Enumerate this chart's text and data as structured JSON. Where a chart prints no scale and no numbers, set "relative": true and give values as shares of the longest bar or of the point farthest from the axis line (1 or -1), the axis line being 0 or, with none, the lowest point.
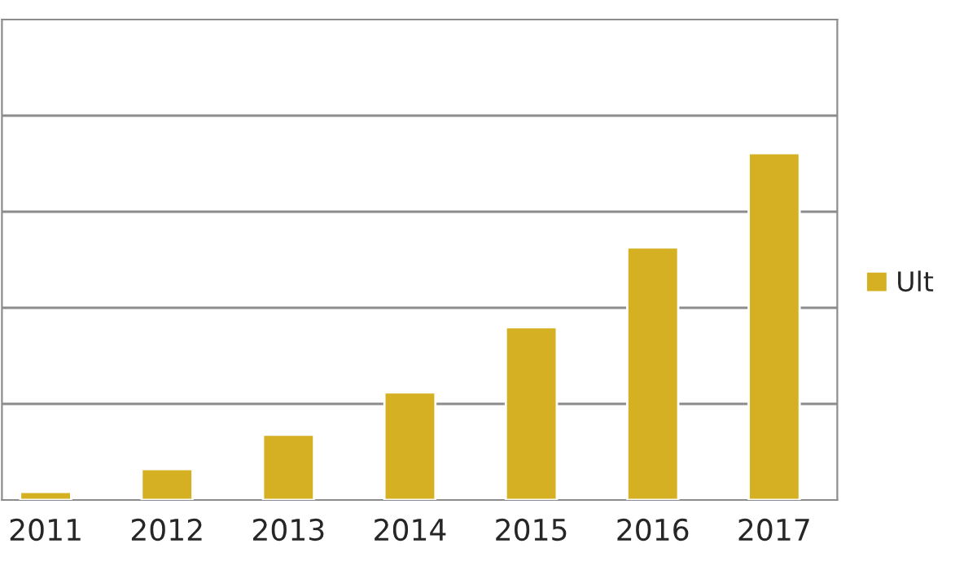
{
  "chart_data": {
    "type": "bar",
    "relative": true,
    "categories": [
      "2011",
      "2012",
      "2013",
      "2014",
      "2015",
      "2016",
      "2017"
    ],
    "series": [
      {
        "name": "Ult",
        "color": "#d4b022",
        "values": [
          0.023,
          0.089,
          0.188,
          0.31,
          0.498,
          0.728,
          1
        ]
      }
    ],
    "grid": "y",
    "legend": "right"
  }
}
